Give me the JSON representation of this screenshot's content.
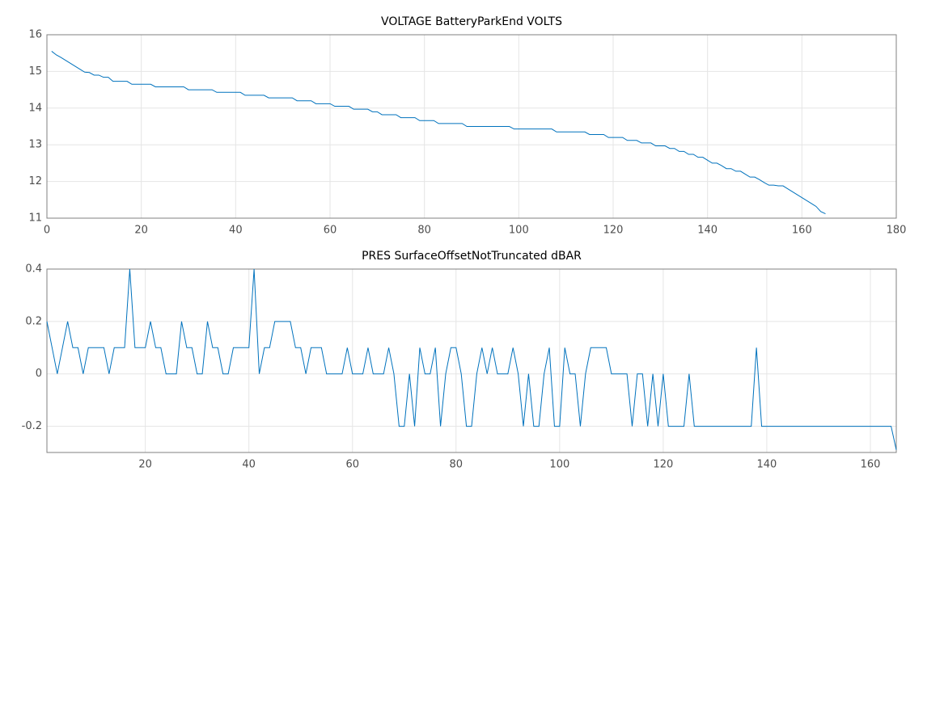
{
  "chart_data": [
    {
      "type": "line",
      "title": "VOLTAGE BatteryParkEnd VOLTS",
      "xlim": [
        0,
        180
      ],
      "xticks": [
        0,
        20,
        40,
        60,
        80,
        100,
        120,
        140,
        160,
        180
      ],
      "ylim": [
        11,
        16
      ],
      "yticks": [
        11,
        12,
        13,
        14,
        15,
        16
      ],
      "grid": true,
      "series": [
        {
          "color": "#0072bd",
          "x": [
            1,
            2,
            3,
            4,
            5,
            6,
            7,
            8,
            9,
            10,
            11,
            12,
            13,
            14,
            15,
            16,
            17,
            18,
            19,
            20,
            21,
            22,
            23,
            24,
            25,
            26,
            27,
            28,
            29,
            30,
            31,
            32,
            33,
            34,
            35,
            36,
            37,
            38,
            39,
            40,
            41,
            42,
            43,
            44,
            45,
            46,
            47,
            48,
            49,
            50,
            51,
            52,
            53,
            54,
            55,
            56,
            57,
            58,
            59,
            60,
            61,
            62,
            63,
            64,
            65,
            66,
            67,
            68,
            69,
            70,
            71,
            72,
            73,
            74,
            75,
            76,
            77,
            78,
            79,
            80,
            81,
            82,
            83,
            84,
            85,
            86,
            87,
            88,
            89,
            90,
            91,
            92,
            93,
            94,
            95,
            96,
            97,
            98,
            99,
            100,
            101,
            102,
            103,
            104,
            105,
            106,
            107,
            108,
            109,
            110,
            111,
            112,
            113,
            114,
            115,
            116,
            117,
            118,
            119,
            120,
            121,
            122,
            123,
            124,
            125,
            126,
            127,
            128,
            129,
            130,
            131,
            132,
            133,
            134,
            135,
            136,
            137,
            138,
            139,
            140,
            141,
            142,
            143,
            144,
            145,
            146,
            147,
            148,
            149,
            150,
            151,
            152,
            153,
            154,
            155,
            156,
            157,
            158,
            159,
            160,
            161,
            162,
            163,
            164,
            165
          ],
          "values": [
            15.55,
            15.45,
            15.38,
            15.3,
            15.22,
            15.14,
            15.06,
            14.98,
            14.97,
            14.9,
            14.9,
            14.84,
            14.84,
            14.73,
            14.73,
            14.73,
            14.73,
            14.65,
            14.65,
            14.65,
            14.65,
            14.65,
            14.58,
            14.58,
            14.58,
            14.58,
            14.58,
            14.58,
            14.58,
            14.5,
            14.5,
            14.5,
            14.5,
            14.5,
            14.5,
            14.43,
            14.43,
            14.43,
            14.43,
            14.43,
            14.43,
            14.35,
            14.35,
            14.35,
            14.35,
            14.35,
            14.28,
            14.28,
            14.28,
            14.28,
            14.28,
            14.28,
            14.2,
            14.2,
            14.2,
            14.2,
            14.12,
            14.12,
            14.12,
            14.12,
            14.05,
            14.05,
            14.05,
            14.05,
            13.97,
            13.97,
            13.97,
            13.97,
            13.9,
            13.9,
            13.82,
            13.82,
            13.82,
            13.82,
            13.74,
            13.74,
            13.74,
            13.74,
            13.66,
            13.66,
            13.66,
            13.66,
            13.58,
            13.58,
            13.58,
            13.58,
            13.58,
            13.58,
            13.5,
            13.5,
            13.5,
            13.5,
            13.5,
            13.5,
            13.5,
            13.5,
            13.5,
            13.5,
            13.43,
            13.43,
            13.43,
            13.43,
            13.43,
            13.43,
            13.43,
            13.43,
            13.43,
            13.35,
            13.35,
            13.35,
            13.35,
            13.35,
            13.35,
            13.35,
            13.28,
            13.28,
            13.28,
            13.28,
            13.2,
            13.2,
            13.2,
            13.2,
            13.12,
            13.12,
            13.12,
            13.05,
            13.05,
            13.05,
            12.97,
            12.97,
            12.97,
            12.9,
            12.9,
            12.82,
            12.82,
            12.74,
            12.74,
            12.66,
            12.66,
            12.58,
            12.5,
            12.5,
            12.43,
            12.35,
            12.35,
            12.28,
            12.28,
            12.2,
            12.12,
            12.12,
            12.05,
            11.97,
            11.9,
            11.9,
            11.88,
            11.88,
            11.8,
            11.72,
            11.64,
            11.56,
            11.48,
            11.4,
            11.32,
            11.18,
            11.12
          ]
        }
      ]
    },
    {
      "type": "line",
      "title": "PRES SurfaceOffsetNotTruncated dBAR",
      "xlim": [
        1,
        165
      ],
      "xticks": [
        20,
        40,
        60,
        80,
        100,
        120,
        140,
        160
      ],
      "ylim": [
        -0.3,
        0.4
      ],
      "yticks": [
        -0.2,
        0,
        0.2,
        0.4
      ],
      "grid": true,
      "series": [
        {
          "color": "#0072bd",
          "x": [
            1,
            2,
            3,
            4,
            5,
            6,
            7,
            8,
            9,
            10,
            11,
            12,
            13,
            14,
            15,
            16,
            17,
            18,
            19,
            20,
            21,
            22,
            23,
            24,
            25,
            26,
            27,
            28,
            29,
            30,
            31,
            32,
            33,
            34,
            35,
            36,
            37,
            38,
            39,
            40,
            41,
            42,
            43,
            44,
            45,
            46,
            47,
            48,
            49,
            50,
            51,
            52,
            53,
            54,
            55,
            56,
            57,
            58,
            59,
            60,
            61,
            62,
            63,
            64,
            65,
            66,
            67,
            68,
            69,
            70,
            71,
            72,
            73,
            74,
            75,
            76,
            77,
            78,
            79,
            80,
            81,
            82,
            83,
            84,
            85,
            86,
            87,
            88,
            89,
            90,
            91,
            92,
            93,
            94,
            95,
            96,
            97,
            98,
            99,
            100,
            101,
            102,
            103,
            104,
            105,
            106,
            107,
            108,
            109,
            110,
            111,
            112,
            113,
            114,
            115,
            116,
            117,
            118,
            119,
            120,
            121,
            122,
            123,
            124,
            125,
            126,
            127,
            128,
            129,
            130,
            131,
            132,
            133,
            134,
            135,
            136,
            137,
            138,
            139,
            140,
            141,
            142,
            143,
            144,
            145,
            146,
            147,
            148,
            149,
            150,
            151,
            152,
            153,
            154,
            155,
            156,
            157,
            158,
            159,
            160,
            161,
            162,
            163,
            164,
            165
          ],
          "values": [
            0.2,
            0.1,
            0,
            0.1,
            0.2,
            0.1,
            0.1,
            0,
            0.1,
            0.1,
            0.1,
            0.1,
            0,
            0.1,
            0.1,
            0.1,
            0.4,
            0.1,
            0.1,
            0.1,
            0.2,
            0.1,
            0.1,
            0,
            0,
            0,
            0.2,
            0.1,
            0.1,
            0,
            0,
            0.2,
            0.1,
            0.1,
            0,
            0,
            0.1,
            0.1,
            0.1,
            0.1,
            0.4,
            0,
            0.1,
            0.1,
            0.2,
            0.2,
            0.2,
            0.2,
            0.1,
            0.1,
            0,
            0.1,
            0.1,
            0.1,
            0,
            0,
            0,
            0,
            0.1,
            0,
            0,
            0,
            0.1,
            0,
            0,
            0,
            0.1,
            0,
            -0.2,
            -0.2,
            0,
            -0.2,
            0.1,
            0,
            0,
            0.1,
            -0.2,
            0,
            0.1,
            0.1,
            0,
            -0.2,
            -0.2,
            0,
            0.1,
            0,
            0.1,
            0,
            0,
            0,
            0.1,
            0,
            -0.2,
            0,
            -0.2,
            -0.2,
            0,
            0.1,
            -0.2,
            -0.2,
            0.1,
            0,
            0,
            -0.2,
            0,
            0.1,
            0.1,
            0.1,
            0.1,
            0,
            0,
            0,
            0,
            -0.2,
            0,
            0,
            -0.2,
            0,
            -0.2,
            0,
            -0.2,
            -0.2,
            -0.2,
            -0.2,
            0,
            -0.2,
            -0.2,
            -0.2,
            -0.2,
            -0.2,
            -0.2,
            -0.2,
            -0.2,
            -0.2,
            -0.2,
            -0.2,
            -0.2,
            0.1,
            -0.2,
            -0.2,
            -0.2,
            -0.2,
            -0.2,
            -0.2,
            -0.2,
            -0.2,
            -0.2,
            -0.2,
            -0.2,
            -0.2,
            -0.2,
            -0.2,
            -0.2,
            -0.2,
            -0.2,
            -0.2,
            -0.2,
            -0.2,
            -0.2,
            -0.2,
            -0.2,
            -0.2,
            -0.2,
            -0.2,
            -0.29
          ]
        }
      ]
    }
  ]
}
